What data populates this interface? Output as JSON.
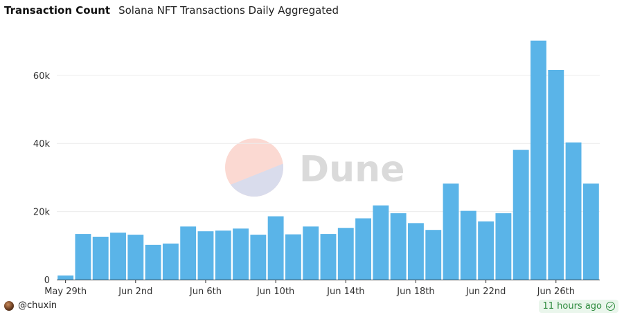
{
  "header": {
    "title": "Transaction Count",
    "subtitle": "Solana NFT Transactions Daily Aggregated"
  },
  "watermark": {
    "text": "Dune"
  },
  "footer": {
    "user": "@chuxin",
    "time": "11 hours ago"
  },
  "colors": {
    "bar": "#5ab4e8",
    "grid": "#ececec",
    "axis": "#333333"
  },
  "chart_data": {
    "type": "bar",
    "categories": [
      "May 29th",
      "May 30th",
      "May 31st",
      "Jun 1st",
      "Jun 2nd",
      "Jun 3rd",
      "Jun 4th",
      "Jun 5th",
      "Jun 6th",
      "Jun 7th",
      "Jun 8th",
      "Jun 9th",
      "Jun 10th",
      "Jun 11th",
      "Jun 12th",
      "Jun 13th",
      "Jun 14th",
      "Jun 15th",
      "Jun 16th",
      "Jun 17th",
      "Jun 18th",
      "Jun 19th",
      "Jun 20th",
      "Jun 21st",
      "Jun 22nd",
      "Jun 23rd",
      "Jun 24th",
      "Jun 25th",
      "Jun 26th",
      "Jun 27th",
      "Jun 28th"
    ],
    "values": [
      1200,
      13400,
      12600,
      13800,
      13200,
      10200,
      10600,
      15600,
      14200,
      14400,
      15000,
      13200,
      18600,
      13300,
      15600,
      13400,
      15200,
      18000,
      21800,
      19500,
      16600,
      14600,
      28200,
      20200,
      17100,
      19500,
      38100,
      70200,
      61600,
      40300,
      28200
    ],
    "tick_labels": [
      "May 29th",
      "Jun 2nd",
      "Jun 6th",
      "Jun 10th",
      "Jun 14th",
      "Jun 18th",
      "Jun 22nd",
      "Jun 26th"
    ],
    "tick_indices": [
      0,
      4,
      8,
      12,
      16,
      20,
      24,
      28
    ],
    "yticks": [
      0,
      20000,
      40000,
      60000
    ],
    "ytick_labels": [
      "0",
      "20k",
      "40k",
      "60k"
    ],
    "ylim": [
      0,
      74000
    ],
    "xlabel": "",
    "ylabel": "",
    "grid": true,
    "legend": "none"
  }
}
